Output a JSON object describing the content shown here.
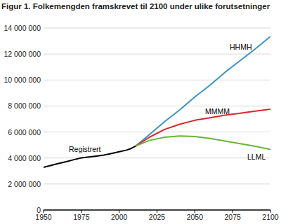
{
  "chart_data": {
    "type": "line",
    "title": "Figur 1. Folkemengden framskrevet til 2100 under ulike forutsetninger",
    "x": [
      1950,
      1955,
      1960,
      1965,
      1970,
      1975,
      1980,
      1985,
      1990,
      1995,
      2000,
      2005,
      2008,
      2011,
      2020,
      2030,
      2040,
      2050,
      2060,
      2070,
      2080,
      2090,
      2100
    ],
    "series": [
      {
        "name": "Registrert",
        "color": "#000000",
        "values": [
          3280000,
          3430000,
          3580000,
          3720000,
          3870000,
          4010000,
          4080000,
          4150000,
          4230000,
          4350000,
          4480000,
          4610000,
          4740000,
          4920000,
          null,
          null,
          null,
          null,
          null,
          null,
          null,
          null,
          null
        ]
      },
      {
        "name": "HHMH",
        "color": "#3d93c8",
        "values": [
          null,
          null,
          null,
          null,
          null,
          null,
          null,
          null,
          null,
          null,
          null,
          null,
          null,
          4920000,
          5800000,
          6800000,
          7700000,
          8700000,
          9600000,
          10600000,
          11500000,
          12400000,
          13350000
        ]
      },
      {
        "name": "MMMM",
        "color": "#d7282c",
        "values": [
          null,
          null,
          null,
          null,
          null,
          null,
          null,
          null,
          null,
          null,
          null,
          null,
          null,
          4920000,
          5600000,
          6200000,
          6600000,
          6900000,
          7100000,
          7300000,
          7450000,
          7600000,
          7750000
        ]
      },
      {
        "name": "LLML",
        "color": "#6ab43e",
        "values": [
          null,
          null,
          null,
          null,
          null,
          null,
          null,
          null,
          null,
          null,
          null,
          null,
          null,
          4920000,
          5350000,
          5600000,
          5700000,
          5650000,
          5500000,
          5300000,
          5100000,
          4900000,
          4650000
        ]
      }
    ],
    "xlim": [
      1950,
      2100
    ],
    "xticks": [
      1950,
      1975,
      2000,
      2025,
      2050,
      2075,
      2100
    ],
    "ylim": [
      0,
      14000000
    ],
    "yticks": [
      0,
      {
        "value": 2000000,
        "label": "2 000 000"
      },
      {
        "value": 4000000,
        "label": "4 000 000"
      },
      {
        "value": 6000000,
        "label": "6 000 000"
      },
      {
        "value": 8000000,
        "label": "8 000 000"
      },
      {
        "value": 10000000,
        "label": "10 000 000"
      },
      {
        "value": 12000000,
        "label": "12 000 000"
      },
      {
        "value": 14000000,
        "label": "14 000 000"
      }
    ],
    "grid": true
  }
}
